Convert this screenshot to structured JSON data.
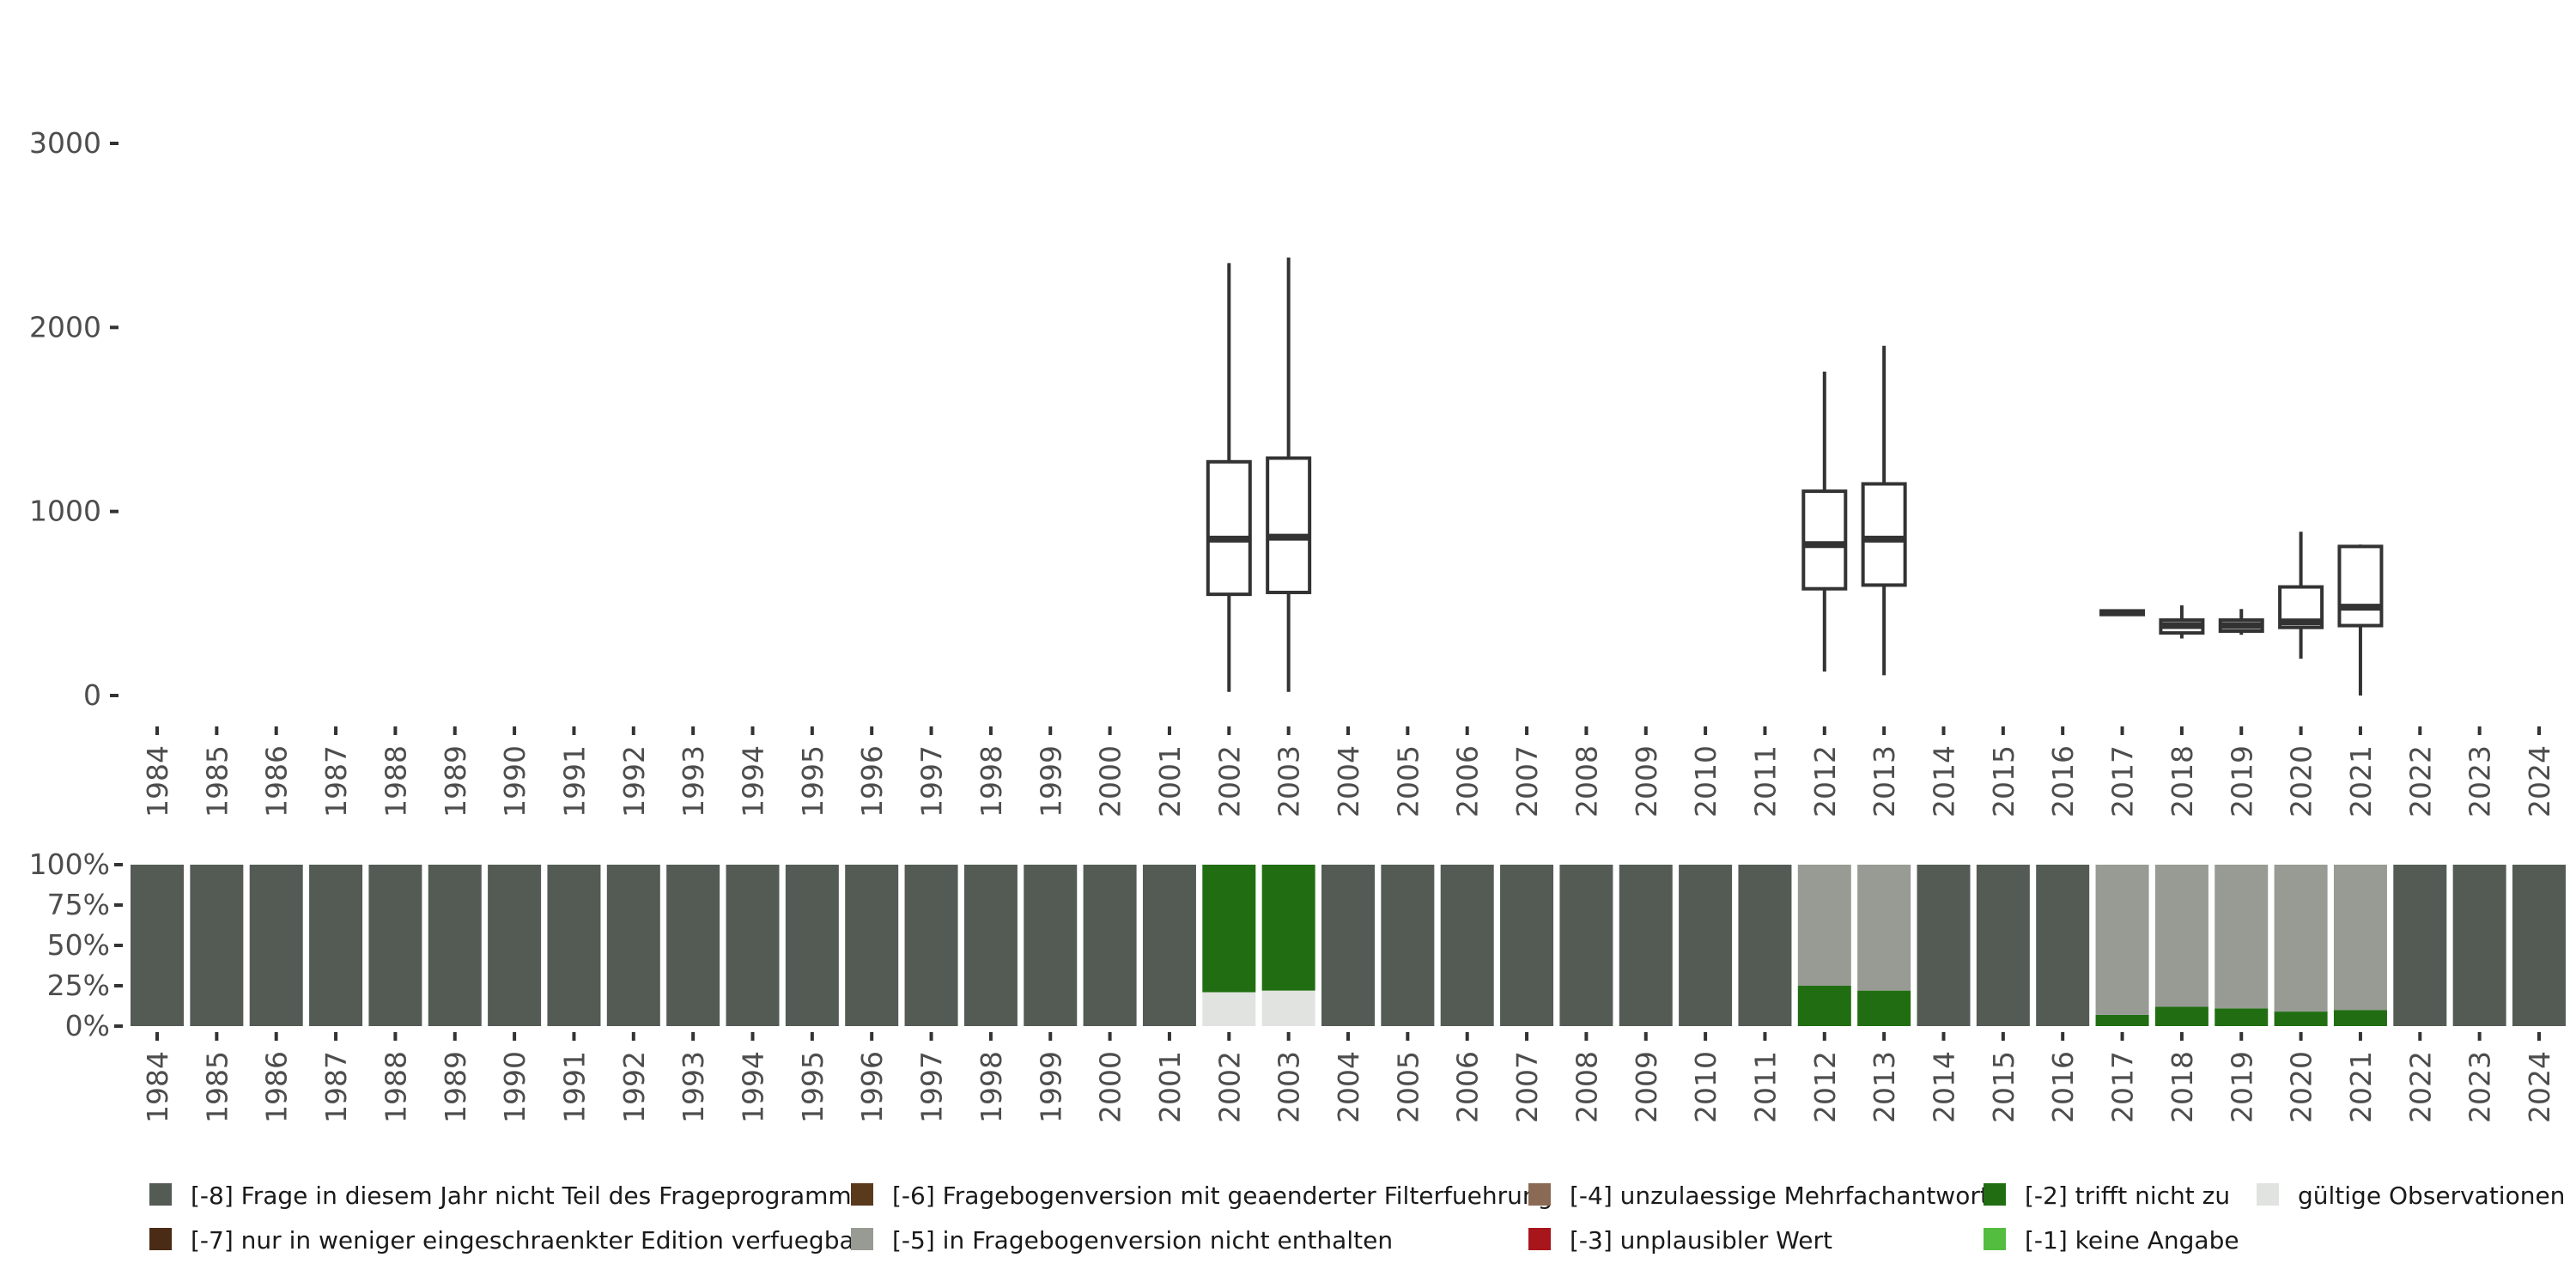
{
  "chart_data": [
    {
      "type": "boxplot",
      "title": "",
      "xlabel": "",
      "ylabel": "",
      "ylim": [
        -100,
        3000
      ],
      "yticks": [
        0,
        1000,
        2000,
        3000
      ],
      "ytick_labels": [
        "0",
        "1000",
        "2000",
        "3000"
      ],
      "categories": [
        "1984",
        "1985",
        "1986",
        "1987",
        "1988",
        "1989",
        "1990",
        "1991",
        "1992",
        "1993",
        "1994",
        "1995",
        "1996",
        "1997",
        "1998",
        "1999",
        "2000",
        "2001",
        "2002",
        "2003",
        "2004",
        "2005",
        "2006",
        "2007",
        "2008",
        "2009",
        "2010",
        "2011",
        "2012",
        "2013",
        "2014",
        "2015",
        "2016",
        "2017",
        "2018",
        "2019",
        "2020",
        "2021",
        "2022",
        "2023",
        "2024"
      ],
      "boxes": [
        {
          "year": "2002",
          "whisker_low": 20,
          "q1": 550,
          "median": 850,
          "q3": 1270,
          "whisker_high": 2350
        },
        {
          "year": "2003",
          "whisker_low": 20,
          "q1": 560,
          "median": 860,
          "q3": 1290,
          "whisker_high": 2380
        },
        {
          "year": "2012",
          "whisker_low": 130,
          "q1": 580,
          "median": 820,
          "q3": 1110,
          "whisker_high": 1760
        },
        {
          "year": "2013",
          "whisker_low": 110,
          "q1": 600,
          "median": 850,
          "q3": 1150,
          "whisker_high": 1900
        },
        {
          "year": "2017",
          "whisker_low": 440,
          "q1": 440,
          "median": 450,
          "q3": 460,
          "whisker_high": 460
        },
        {
          "year": "2018",
          "whisker_low": 310,
          "q1": 340,
          "median": 380,
          "q3": 410,
          "whisker_high": 490
        },
        {
          "year": "2019",
          "whisker_low": 330,
          "q1": 350,
          "median": 380,
          "q3": 410,
          "whisker_high": 470
        },
        {
          "year": "2020",
          "whisker_low": 200,
          "q1": 370,
          "median": 400,
          "q3": 590,
          "whisker_high": 890
        },
        {
          "year": "2021",
          "whisker_low": 0,
          "q1": 380,
          "median": 480,
          "q3": 810,
          "whisker_high": 820
        }
      ]
    },
    {
      "type": "stacked_bar",
      "title": "",
      "xlabel": "",
      "ylabel": "",
      "ylim": [
        0,
        100
      ],
      "yticks": [
        0,
        25,
        50,
        75,
        100
      ],
      "ytick_labels": [
        "0%",
        "25%",
        "50%",
        "75%",
        "100%"
      ],
      "categories": [
        "1984",
        "1985",
        "1986",
        "1987",
        "1988",
        "1989",
        "1990",
        "1991",
        "1992",
        "1993",
        "1994",
        "1995",
        "1996",
        "1997",
        "1998",
        "1999",
        "2000",
        "2001",
        "2002",
        "2003",
        "2004",
        "2005",
        "2006",
        "2007",
        "2008",
        "2009",
        "2010",
        "2011",
        "2012",
        "2013",
        "2014",
        "2015",
        "2016",
        "2017",
        "2018",
        "2019",
        "2020",
        "2021",
        "2022",
        "2023",
        "2024"
      ],
      "series": [
        {
          "name": "gültige Observationen",
          "color": "#e0e3df",
          "values": [
            0,
            0,
            0,
            0,
            0,
            0,
            0,
            0,
            0,
            0,
            0,
            0,
            0,
            0,
            0,
            0,
            0,
            0,
            21,
            22,
            0,
            0,
            0,
            0,
            0,
            0,
            0,
            0,
            0,
            0,
            0,
            0,
            0,
            0,
            0,
            0,
            0,
            0,
            0,
            0,
            0
          ]
        },
        {
          "name": "[-2] trifft nicht zu",
          "color": "#216e12",
          "values": [
            0,
            0,
            0,
            0,
            0,
            0,
            0,
            0,
            0,
            0,
            0,
            0,
            0,
            0,
            0,
            0,
            0,
            0,
            79,
            78,
            0,
            0,
            0,
            0,
            0,
            0,
            0,
            0,
            25,
            22,
            0,
            0,
            0,
            7,
            12,
            11,
            9,
            10,
            0,
            0,
            0
          ]
        },
        {
          "name": "[-5] in Fragebogenversion nicht enthalten",
          "color": "#979b93",
          "values": [
            0,
            0,
            0,
            0,
            0,
            0,
            0,
            0,
            0,
            0,
            0,
            0,
            0,
            0,
            0,
            0,
            0,
            0,
            0,
            0,
            0,
            0,
            0,
            0,
            0,
            0,
            0,
            0,
            75,
            78,
            0,
            0,
            0,
            93,
            88,
            89,
            91,
            90,
            0,
            0,
            0
          ]
        },
        {
          "name": "[-8] Frage in diesem Jahr nicht Teil des Frageprogramms",
          "color": "#545b55",
          "values": [
            100,
            100,
            100,
            100,
            100,
            100,
            100,
            100,
            100,
            100,
            100,
            100,
            100,
            100,
            100,
            100,
            100,
            100,
            0,
            0,
            100,
            100,
            100,
            100,
            100,
            100,
            100,
            100,
            0,
            0,
            100,
            100,
            100,
            0,
            0,
            0,
            0,
            0,
            100,
            100,
            100
          ]
        }
      ]
    }
  ],
  "legend": [
    {
      "label": "[-8] Frage in diesem Jahr nicht Teil des Frageprogramms",
      "color": "#545b55"
    },
    {
      "label": "[-7] nur in weniger eingeschraenkter Edition verfuegbar",
      "color": "#4a2c16"
    },
    {
      "label": "[-6] Fragebogenversion mit geaenderter Filterfuehrung",
      "color": "#5a3a1c"
    },
    {
      "label": "[-5] in Fragebogenversion nicht enthalten",
      "color": "#979b93"
    },
    {
      "label": "[-4] unzulaessige Mehrfachantwort",
      "color": "#8b6a55"
    },
    {
      "label": "[-3] unplausibler Wert",
      "color": "#a8161b"
    },
    {
      "label": "[-2] trifft nicht zu",
      "color": "#216e12"
    },
    {
      "label": "[-1] keine Angabe",
      "color": "#52bd3f"
    },
    {
      "label": "gültige Observationen",
      "color": "#e0e3df"
    }
  ]
}
